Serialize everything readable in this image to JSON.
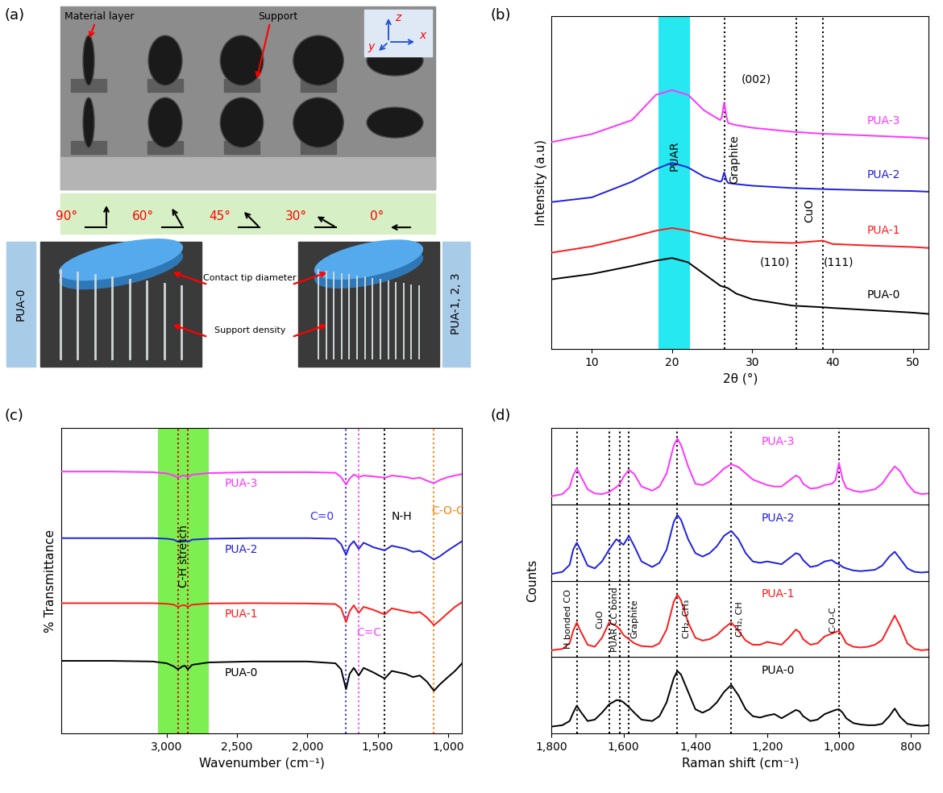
{
  "photo_panel": {
    "panel": "(a)",
    "material_layer": "Material layer",
    "support": "Support",
    "axes": [
      "z",
      "x",
      "y"
    ],
    "angles": [
      {
        "value": 90,
        "label": "90°"
      },
      {
        "value": 60,
        "label": "60°"
      },
      {
        "value": 45,
        "label": "45°"
      },
      {
        "value": 30,
        "label": "30°"
      },
      {
        "value": 0,
        "label": "0°"
      }
    ],
    "renders": [
      "PUA-0",
      "PUA-1, 2, 3"
    ],
    "callouts": [
      "Contact tip diameter",
      "Support density"
    ]
  },
  "chart_data": [
    {
      "panel": "(b)",
      "type": "line",
      "x_label": "2θ (°)",
      "y_label": "Intensity (a.u)",
      "xlim": [
        5,
        52
      ],
      "xticks": [
        10,
        20,
        30,
        40,
        50
      ],
      "ylim": [
        0,
        10
      ],
      "tick_labels": "x",
      "x": [
        5,
        10,
        15,
        18,
        20,
        22,
        24,
        26,
        26.2,
        26.5,
        26.8,
        27,
        28,
        30,
        35,
        38.8,
        40,
        45,
        50,
        52
      ],
      "series": [
        {
          "name": "PUA-0",
          "color": "#000000",
          "values": [
            2.09,
            2.25,
            2.49,
            2.65,
            2.73,
            2.6,
            2.25,
            1.9,
            1.88,
            1.86,
            1.84,
            1.82,
            1.66,
            1.49,
            1.3,
            1.25,
            1.23,
            1.16,
            1.09,
            1.05
          ]
        },
        {
          "name": "PUA-1",
          "color": "#ff1a1a",
          "values": [
            2.89,
            3.08,
            3.36,
            3.55,
            3.63,
            3.55,
            3.43,
            3.33,
            3.32,
            3.33,
            3.31,
            3.3,
            3.27,
            3.22,
            3.18,
            3.25,
            3.15,
            3.1,
            3.06,
            3.03
          ]
        },
        {
          "name": "PUA-2",
          "color": "#1f1fe0",
          "values": [
            4.41,
            4.55,
            5.02,
            5.4,
            5.59,
            5.45,
            5.17,
            5.02,
            5.05,
            5.3,
            5.05,
            4.98,
            4.95,
            4.9,
            4.83,
            4.8,
            4.79,
            4.76,
            4.74,
            4.72
          ]
        },
        {
          "name": "PUA-3",
          "color": "#ff33ff",
          "values": [
            6.21,
            6.45,
            6.87,
            7.63,
            7.77,
            7.63,
            7.16,
            6.87,
            6.95,
            7.4,
            6.95,
            6.78,
            6.72,
            6.64,
            6.52,
            6.46,
            6.45,
            6.4,
            6.35,
            6.32
          ]
        }
      ],
      "band": {
        "from": 18.3,
        "to": 22.2,
        "color": "#00e5ee",
        "label": "PUAR"
      },
      "vlines": [
        {
          "x": 26.5,
          "color": "#000000"
        },
        {
          "x": 35.5,
          "color": "#000000"
        },
        {
          "x": 38.8,
          "color": "#000000"
        }
      ],
      "annotations": [
        {
          "text": "(002)",
          "x": 30.5,
          "y": 8.1,
          "color": "#000000"
        },
        {
          "text": "Graphite",
          "x": 27.8,
          "y": 5.7,
          "color": "#000000",
          "orientation": "vertical"
        },
        {
          "text": "CuO",
          "x": 37.1,
          "y": 4.15,
          "color": "#000000",
          "orientation": "vertical"
        },
        {
          "text": "(110)",
          "x": 32.8,
          "y": 2.6,
          "color": "#000000"
        },
        {
          "text": "(111)",
          "x": 40.8,
          "y": 2.6,
          "color": "#000000"
        }
      ]
    },
    {
      "panel": "(c)",
      "type": "line",
      "x_label": "Wavenumber (cm⁻¹)",
      "y_label": "% Transmittance",
      "xlim": [
        3750,
        900
      ],
      "xticks": [
        {
          "value": 3000,
          "label": "3,000"
        },
        {
          "value": 2500,
          "label": "2,500"
        },
        {
          "value": 2000,
          "label": "2,000"
        },
        {
          "value": 1500,
          "label": "1,500"
        },
        {
          "value": 1000,
          "label": "1,000"
        }
      ],
      "ylim": [
        0,
        10
      ],
      "tick_labels": "x",
      "x": [
        3750,
        3400,
        3100,
        3000,
        2950,
        2920,
        2890,
        2870,
        2850,
        2820,
        2700,
        2400,
        2000,
        1800,
        1760,
        1725,
        1700,
        1670,
        1635,
        1600,
        1530,
        1450,
        1400,
        1300,
        1250,
        1200,
        1150,
        1100,
        1060,
        1000,
        950,
        900
      ],
      "series": [
        {
          "name": "PUA-0",
          "color": "#000000",
          "values": [
            2.38,
            2.38,
            2.36,
            2.3,
            2.2,
            2.1,
            2.2,
            2.22,
            2.1,
            2.25,
            2.33,
            2.36,
            2.36,
            2.3,
            2.1,
            1.45,
            1.95,
            2.15,
            1.9,
            2.15,
            2.0,
            1.8,
            2.05,
            1.95,
            1.85,
            1.9,
            1.7,
            1.4,
            1.6,
            1.85,
            2.05,
            2.3
          ]
        },
        {
          "name": "PUA-1",
          "color": "#ff1a1a",
          "values": [
            4.27,
            4.27,
            4.27,
            4.25,
            4.22,
            4.15,
            4.2,
            4.2,
            4.15,
            4.22,
            4.26,
            4.27,
            4.26,
            4.24,
            4.1,
            3.65,
            4.0,
            4.2,
            3.95,
            4.15,
            4.05,
            3.9,
            4.1,
            4.0,
            3.95,
            3.98,
            3.8,
            3.55,
            3.7,
            3.95,
            4.15,
            4.3
          ]
        },
        {
          "name": "PUA-2",
          "color": "#1f1fe0",
          "values": [
            6.4,
            6.4,
            6.4,
            6.38,
            6.35,
            6.28,
            6.33,
            6.33,
            6.28,
            6.35,
            6.38,
            6.4,
            6.4,
            6.38,
            6.2,
            5.85,
            6.15,
            6.3,
            6.05,
            6.25,
            6.1,
            6.0,
            6.15,
            6.05,
            5.95,
            5.98,
            5.85,
            5.7,
            5.8,
            6.0,
            6.15,
            6.3
          ]
        },
        {
          "name": "PUA-3",
          "color": "#ff33ff",
          "values": [
            8.58,
            8.58,
            8.56,
            8.52,
            8.45,
            8.38,
            8.45,
            8.45,
            8.4,
            8.48,
            8.53,
            8.56,
            8.56,
            8.54,
            8.4,
            8.15,
            8.35,
            8.48,
            8.4,
            8.45,
            8.42,
            8.38,
            8.45,
            8.4,
            8.35,
            8.38,
            8.28,
            8.2,
            8.3,
            8.4,
            8.45,
            8.5
          ]
        }
      ],
      "band": {
        "from": 2700,
        "to": 3060,
        "color": "#66ee33",
        "label": "C-H stretch"
      },
      "vlines": [
        {
          "x": 2920,
          "color": "#cc0000"
        },
        {
          "x": 2850,
          "color": "#cc0000"
        },
        {
          "x": 1725,
          "color": "#3333ff"
        },
        {
          "x": 1635,
          "color": "#ff44ff"
        },
        {
          "x": 1450,
          "color": "#000000"
        },
        {
          "x": 1100,
          "color": "#ff7f0e"
        }
      ],
      "annotations": [
        {
          "text": "C=0",
          "x": 1900,
          "y": 7.1,
          "color": "#3333ff"
        },
        {
          "text": "C=C",
          "x": 1560,
          "y": 3.3,
          "color": "#ff44ff"
        },
        {
          "text": "N-H",
          "x": 1330,
          "y": 7.1,
          "color": "#000000"
        },
        {
          "text": "C-O-C",
          "x": 1000,
          "y": 7.3,
          "color": "#ff7f0e"
        }
      ]
    },
    {
      "panel": "(d)",
      "type": "line",
      "x_label": "Raman shift (cm⁻¹)",
      "y_label": "Counts",
      "xlim": [
        1800,
        750
      ],
      "xticks": [
        {
          "value": 1800,
          "label": "1,800"
        },
        {
          "value": 1600,
          "label": "1,600"
        },
        {
          "value": 1400,
          "label": "1,400"
        },
        {
          "value": 1200,
          "label": "1,200"
        },
        {
          "value": 1000,
          "label": "1,000"
        },
        800
      ],
      "ylim": [
        0,
        11
      ],
      "tick_labels": "x",
      "x": [
        1800,
        1770,
        1750,
        1740,
        1730,
        1720,
        1700,
        1680,
        1660,
        1640,
        1620,
        1610,
        1600,
        1585,
        1570,
        1550,
        1520,
        1500,
        1480,
        1460,
        1450,
        1440,
        1420,
        1400,
        1380,
        1360,
        1340,
        1320,
        1300,
        1280,
        1260,
        1240,
        1220,
        1200,
        1180,
        1160,
        1140,
        1120,
        1110,
        1100,
        1080,
        1060,
        1040,
        1020,
        1010,
        1000,
        990,
        980,
        960,
        940,
        920,
        900,
        880,
        860,
        845,
        830,
        810,
        790,
        770,
        750
      ],
      "series": [
        {
          "name": "PUA-0",
          "color": "#000000",
          "values": [
            1.0,
            1.2,
            1.8,
            3.0,
            4.0,
            3.2,
            1.8,
            2.0,
            3.0,
            4.2,
            4.8,
            4.8,
            4.5,
            3.8,
            3.0,
            2.0,
            1.8,
            2.5,
            4.5,
            8.0,
            9.0,
            8.5,
            6.0,
            3.5,
            3.0,
            3.5,
            4.5,
            6.0,
            7.0,
            5.5,
            3.5,
            2.5,
            2.3,
            2.6,
            2.8,
            2.2,
            2.8,
            3.4,
            3.2,
            2.5,
            1.8,
            2.0,
            2.8,
            3.2,
            3.4,
            3.5,
            3.0,
            2.2,
            1.5,
            1.3,
            1.2,
            1.2,
            1.4,
            2.5,
            3.6,
            2.4,
            1.4,
            1.2,
            1.1,
            1.2
          ]
        },
        {
          "name": "PUA-1",
          "color": "#ff1a1a",
          "values": [
            1.0,
            1.2,
            2.0,
            3.8,
            5.0,
            3.8,
            1.8,
            1.5,
            2.8,
            5.0,
            4.5,
            4.0,
            3.2,
            2.6,
            2.0,
            1.6,
            1.5,
            2.0,
            4.0,
            8.0,
            9.0,
            8.2,
            5.0,
            2.8,
            2.4,
            2.6,
            3.2,
            4.2,
            5.0,
            3.8,
            2.4,
            1.8,
            1.8,
            2.2,
            2.0,
            1.8,
            2.8,
            4.0,
            3.6,
            2.6,
            1.8,
            2.0,
            3.0,
            3.4,
            3.6,
            3.8,
            3.0,
            2.0,
            1.5,
            1.4,
            1.5,
            1.8,
            2.5,
            4.5,
            6.0,
            4.5,
            2.0,
            1.2,
            1.0,
            1.1
          ]
        },
        {
          "name": "PUA-2",
          "color": "#1f1fe0",
          "values": [
            1.0,
            1.3,
            2.3,
            4.5,
            5.5,
            4.5,
            2.2,
            1.8,
            2.8,
            4.5,
            6.0,
            5.6,
            5.2,
            6.5,
            5.0,
            2.8,
            2.0,
            2.6,
            4.5,
            8.5,
            9.5,
            8.8,
            6.0,
            4.0,
            3.5,
            4.0,
            5.0,
            6.5,
            7.2,
            6.0,
            4.0,
            2.8,
            2.6,
            2.8,
            2.6,
            2.4,
            3.2,
            4.0,
            3.8,
            3.0,
            2.0,
            2.2,
            2.8,
            3.0,
            2.6,
            2.4,
            2.0,
            1.8,
            1.5,
            1.4,
            1.5,
            1.6,
            2.2,
            3.5,
            4.2,
            3.2,
            1.8,
            1.3,
            1.2,
            1.3
          ]
        },
        {
          "name": "PUA-3",
          "color": "#ff33ff",
          "values": [
            1.2,
            1.5,
            2.5,
            4.2,
            5.2,
            4.2,
            2.2,
            1.6,
            1.5,
            1.8,
            2.5,
            3.0,
            4.0,
            5.0,
            4.4,
            2.6,
            2.0,
            2.6,
            4.5,
            8.5,
            9.5,
            8.6,
            5.5,
            3.0,
            2.8,
            3.3,
            4.2,
            5.2,
            5.8,
            5.4,
            4.5,
            3.6,
            3.2,
            2.8,
            2.6,
            2.6,
            3.4,
            4.2,
            3.9,
            3.0,
            2.3,
            2.4,
            2.8,
            3.0,
            3.5,
            6.0,
            3.6,
            2.4,
            2.0,
            1.8,
            2.0,
            2.2,
            3.0,
            4.5,
            5.5,
            4.8,
            3.0,
            1.8,
            1.5,
            1.6
          ]
        }
      ],
      "vlines": [
        {
          "x": 1730,
          "color": "#000000"
        },
        {
          "x": 1640,
          "color": "#000000"
        },
        {
          "x": 1610,
          "color": "#000000"
        },
        {
          "x": 1585,
          "color": "#000000"
        },
        {
          "x": 1450,
          "color": "#000000"
        },
        {
          "x": 1300,
          "color": "#000000"
        },
        {
          "x": 1000,
          "color": "#000000"
        }
      ],
      "annotations": [
        {
          "text": "H bonded CO",
          "x": 1755,
          "y": 5.5,
          "color": "#000000",
          "orientation": "vertical"
        },
        {
          "text": "CuO",
          "x": 1665,
          "y": 5.5,
          "color": "#000000",
          "orientation": "vertical"
        },
        {
          "text": "PUAR CC bond",
          "x": 1624,
          "y": 5.5,
          "color": "#000000",
          "orientation": "vertical"
        },
        {
          "text": "Graphite",
          "x": 1568,
          "y": 5.5,
          "color": "#000000",
          "orientation": "vertical"
        },
        {
          "text": "CH₂, CH₃",
          "x": 1425,
          "y": 5.5,
          "color": "#000000",
          "orientation": "vertical"
        },
        {
          "text": "CH₂, CH",
          "x": 1275,
          "y": 5.5,
          "color": "#000000",
          "orientation": "vertical"
        },
        {
          "text": "C-O-C",
          "x": 1018,
          "y": 5.5,
          "color": "#000000",
          "orientation": "vertical"
        }
      ]
    }
  ]
}
